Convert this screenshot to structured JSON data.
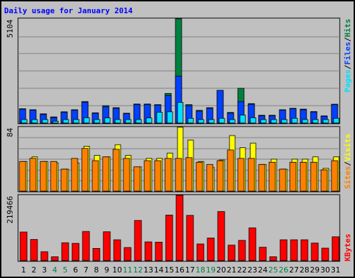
{
  "title": "Daily usage for January 2014",
  "colors": {
    "hits": "#008040",
    "files": "#0040ff",
    "pages": "#00e0ff",
    "visits": "#ffff00",
    "sites": "#ff8000",
    "kbytes": "#ff0000",
    "title": "#0000ff",
    "weekend_day": "#008040",
    "plot_bg": "#c0c0c0"
  },
  "chart_data": [
    {
      "type": "bar",
      "categories": [
        "1",
        "2",
        "3",
        "4",
        "5",
        "6",
        "7",
        "8",
        "9",
        "10",
        "11",
        "12",
        "13",
        "14",
        "15",
        "16",
        "17",
        "18",
        "19",
        "20",
        "21",
        "22",
        "23",
        "24",
        "25",
        "26",
        "27",
        "28",
        "29",
        "30",
        "31"
      ],
      "weekend_days": [
        "4",
        "5",
        "11",
        "12",
        "18",
        "19",
        "25",
        "26"
      ],
      "ymax_label": "5104",
      "ylim": [
        0,
        5104
      ],
      "series": [
        {
          "name": "Hits",
          "values": [
            700,
            650,
            450,
            300,
            550,
            650,
            1050,
            500,
            850,
            750,
            480,
            930,
            930,
            900,
            1450,
            5104,
            900,
            620,
            750,
            1600,
            520,
            1700,
            950,
            380,
            380,
            650,
            720,
            680,
            560,
            350,
            920
          ]
        },
        {
          "name": "Files",
          "values": [
            680,
            630,
            420,
            270,
            520,
            630,
            1020,
            480,
            800,
            720,
            460,
            910,
            910,
            880,
            1350,
            2300,
            850,
            580,
            720,
            1600,
            480,
            1050,
            920,
            350,
            350,
            630,
            700,
            650,
            540,
            330,
            900
          ]
        },
        {
          "name": "Pages",
          "values": [
            170,
            170,
            170,
            90,
            170,
            170,
            260,
            170,
            250,
            170,
            170,
            170,
            250,
            530,
            550,
            1010,
            230,
            170,
            170,
            230,
            170,
            390,
            260,
            170,
            170,
            170,
            230,
            170,
            170,
            170,
            230
          ]
        }
      ],
      "legend_labels": [
        "Pages",
        "Files",
        "Hits"
      ]
    },
    {
      "type": "bar",
      "categories": [
        "1",
        "2",
        "3",
        "4",
        "5",
        "6",
        "7",
        "8",
        "9",
        "10",
        "11",
        "12",
        "13",
        "14",
        "15",
        "16",
        "17",
        "18",
        "19",
        "20",
        "21",
        "22",
        "23",
        "24",
        "25",
        "26",
        "27",
        "28",
        "29",
        "30",
        "31"
      ],
      "ymax_label": "84",
      "ylim": [
        0,
        84
      ],
      "series": [
        {
          "name": "Visits",
          "values": [
            39,
            45,
            39,
            37,
            29,
            37,
            59,
            47,
            45,
            61,
            47,
            32,
            43,
            43,
            50,
            84,
            67,
            39,
            31,
            41,
            73,
            57,
            63,
            35,
            42,
            29,
            42,
            42,
            45,
            30,
            45
          ]
        },
        {
          "name": "Sites",
          "values": [
            39,
            43,
            39,
            39,
            29,
            43,
            56,
            40,
            45,
            55,
            43,
            32,
            40,
            40,
            43,
            43,
            44,
            38,
            35,
            40,
            54,
            43,
            43,
            35,
            38,
            29,
            38,
            38,
            38,
            28,
            40
          ]
        }
      ],
      "legend_labels": [
        "Sites",
        "Visits"
      ]
    },
    {
      "type": "bar",
      "categories": [
        "1",
        "2",
        "3",
        "4",
        "5",
        "6",
        "7",
        "8",
        "9",
        "10",
        "11",
        "12",
        "13",
        "14",
        "15",
        "16",
        "17",
        "18",
        "19",
        "20",
        "21",
        "22",
        "23",
        "24",
        "25",
        "26",
        "27",
        "28",
        "29",
        "30",
        "31"
      ],
      "ymax_label": "219466",
      "ylim": [
        0,
        219466
      ],
      "series": [
        {
          "name": "KBytes",
          "values": [
            96000,
            71000,
            30000,
            13000,
            60000,
            58000,
            98000,
            41000,
            97000,
            70000,
            44000,
            135000,
            63000,
            62000,
            153000,
            219466,
            152000,
            56000,
            76000,
            165000,
            52000,
            68000,
            110000,
            45000,
            13000,
            70000,
            70000,
            70000,
            59000,
            42000,
            80000
          ]
        }
      ],
      "legend_labels": [
        "KBytes"
      ]
    }
  ]
}
